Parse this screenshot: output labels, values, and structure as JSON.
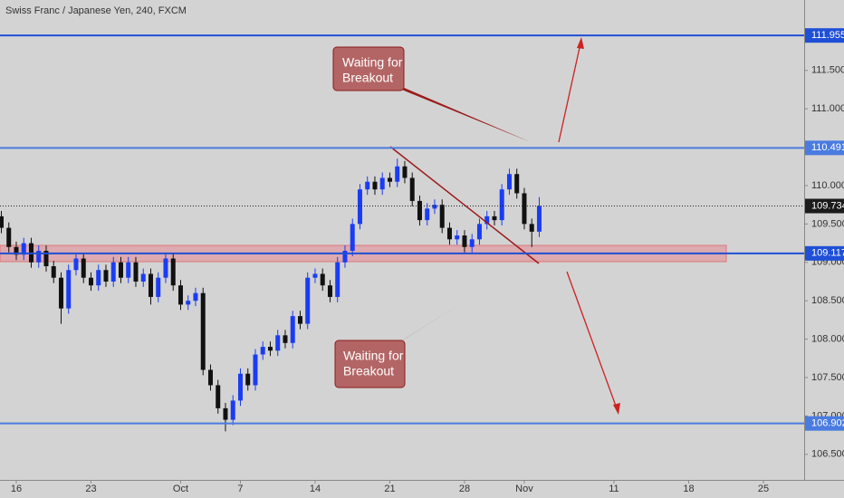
{
  "chart_data": {
    "type": "candlestick",
    "title": "Swiss Franc / Japanese Yen, 240, FXCM",
    "up_color": "#1a3cf5",
    "down_color": "#111111",
    "x": [
      -1,
      -0.5,
      0,
      0.5,
      1,
      1.5,
      2,
      2.5,
      3,
      3.5,
      4,
      4.5,
      5,
      5.5,
      6,
      6.5,
      7,
      7.5,
      8,
      8.5,
      9,
      9.5,
      10,
      10.5,
      11,
      11.5,
      12,
      12.5,
      13,
      13.5,
      14,
      14.5,
      15,
      15.5,
      16,
      16.5,
      17,
      17.5,
      18,
      18.5,
      19,
      19.5,
      20,
      20.5,
      21,
      21.5,
      22,
      22.5,
      23,
      23.5,
      24,
      24.5,
      25,
      25.5,
      26,
      26.5,
      27,
      27.5,
      28,
      28.5,
      29,
      29.5,
      30,
      30.5,
      31,
      31.5,
      32,
      32.5,
      33,
      33.5,
      34,
      34.5,
      35
    ],
    "open": [
      109.6,
      109.45,
      109.2,
      109.1,
      109.25,
      109.0,
      109.15,
      108.95,
      108.8,
      108.4,
      108.9,
      109.05,
      108.8,
      108.7,
      108.9,
      108.75,
      109.0,
      108.8,
      109.0,
      108.75,
      108.85,
      108.55,
      108.8,
      109.05,
      108.7,
      108.45,
      108.5,
      108.6,
      107.6,
      107.4,
      107.1,
      106.95,
      107.2,
      107.55,
      107.4,
      107.8,
      107.9,
      107.85,
      108.05,
      107.95,
      108.3,
      108.2,
      108.8,
      108.85,
      108.7,
      108.55,
      109.0,
      109.15,
      109.5,
      109.95,
      110.05,
      109.95,
      110.1,
      110.05,
      110.25,
      110.1,
      109.8,
      109.55,
      109.7,
      109.75,
      109.45,
      109.3,
      109.35,
      109.2,
      109.3,
      109.5,
      109.6,
      109.55,
      109.95,
      110.15,
      109.9,
      109.5,
      109.4
    ],
    "high": [
      109.67,
      109.52,
      109.27,
      109.32,
      109.32,
      109.22,
      109.22,
      109.02,
      108.87,
      108.97,
      109.12,
      109.12,
      108.87,
      108.97,
      108.97,
      109.07,
      109.07,
      109.07,
      109.07,
      108.92,
      108.92,
      108.87,
      109.12,
      109.12,
      108.77,
      108.57,
      108.67,
      108.67,
      107.67,
      107.47,
      107.17,
      107.27,
      107.62,
      107.62,
      107.87,
      107.97,
      107.97,
      108.12,
      108.12,
      108.37,
      108.37,
      108.87,
      108.92,
      108.92,
      108.77,
      109.07,
      109.22,
      109.57,
      110.02,
      110.12,
      110.12,
      110.17,
      110.17,
      110.35,
      110.32,
      110.17,
      109.87,
      109.77,
      109.82,
      109.82,
      109.52,
      109.42,
      109.42,
      109.37,
      109.57,
      109.67,
      109.67,
      110.02,
      110.22,
      110.22,
      109.97,
      109.57,
      109.85
    ],
    "low": [
      109.38,
      109.13,
      109.03,
      109.03,
      108.93,
      108.93,
      108.88,
      108.73,
      108.2,
      108.33,
      108.83,
      108.73,
      108.63,
      108.63,
      108.68,
      108.68,
      108.73,
      108.73,
      108.68,
      108.68,
      108.45,
      108.48,
      108.73,
      108.63,
      108.38,
      108.38,
      108.43,
      107.53,
      107.33,
      107.03,
      106.8,
      106.88,
      107.13,
      107.33,
      107.33,
      107.73,
      107.78,
      107.78,
      107.88,
      107.88,
      108.13,
      108.13,
      108.73,
      108.63,
      108.48,
      108.48,
      108.93,
      109.08,
      109.43,
      109.88,
      109.88,
      109.88,
      109.98,
      109.98,
      110.03,
      109.73,
      109.48,
      109.48,
      109.63,
      109.38,
      109.23,
      109.23,
      109.13,
      109.13,
      109.23,
      109.43,
      109.48,
      109.48,
      109.88,
      109.83,
      109.43,
      109.2,
      109.33
    ],
    "close": [
      109.45,
      109.2,
      109.1,
      109.25,
      109.0,
      109.15,
      108.95,
      108.8,
      108.4,
      108.9,
      109.05,
      108.8,
      108.7,
      108.9,
      108.75,
      109.0,
      108.8,
      109.0,
      108.75,
      108.85,
      108.55,
      108.8,
      109.05,
      108.7,
      108.45,
      108.5,
      108.6,
      107.6,
      107.4,
      107.1,
      106.95,
      107.2,
      107.55,
      107.4,
      107.8,
      107.9,
      107.85,
      108.05,
      107.95,
      108.3,
      108.2,
      108.8,
      108.85,
      108.7,
      108.55,
      109.0,
      109.15,
      109.5,
      109.95,
      110.05,
      109.95,
      110.1,
      110.05,
      110.25,
      110.1,
      109.8,
      109.55,
      109.7,
      109.75,
      109.45,
      109.3,
      109.35,
      109.2,
      109.3,
      109.5,
      109.6,
      109.55,
      109.95,
      110.15,
      109.9,
      109.5,
      109.4,
      109.734
    ],
    "xlim": [
      -1.09,
      52.73
    ],
    "ylim": [
      106.167,
      112.417
    ],
    "xticks": [
      {
        "value": 0,
        "label": "16"
      },
      {
        "value": 5,
        "label": "23"
      },
      {
        "value": 11,
        "label": "Oct"
      },
      {
        "value": 15,
        "label": "7"
      },
      {
        "value": 20,
        "label": "14"
      },
      {
        "value": 25,
        "label": "21"
      },
      {
        "value": 30,
        "label": "28"
      },
      {
        "value": 34,
        "label": "Nov"
      },
      {
        "value": 40,
        "label": "11"
      },
      {
        "value": 45,
        "label": "18"
      },
      {
        "value": 50,
        "label": "25"
      }
    ],
    "yticks": [
      {
        "value": 106.5,
        "label": "106.500"
      },
      {
        "value": 107,
        "label": "107.000"
      },
      {
        "value": 107.5,
        "label": "107.500"
      },
      {
        "value": 108,
        "label": "108.000"
      },
      {
        "value": 108.5,
        "label": "108.500"
      },
      {
        "value": 109,
        "label": "109.000"
      },
      {
        "value": 109.5,
        "label": "109.500"
      },
      {
        "value": 110,
        "label": "110.000"
      },
      {
        "value": 111,
        "label": "111.000"
      },
      {
        "value": 111.5,
        "label": "111.500"
      }
    ],
    "grid": false,
    "levels": [
      {
        "value": 111.955,
        "color": "#1f4fd6"
      },
      {
        "value": 110.491,
        "color": "#4a7be0"
      },
      {
        "value": 109.117,
        "color": "#1f4fd6"
      },
      {
        "value": 106.902,
        "color": "#4a7be0"
      }
    ],
    "last_price": 109.734,
    "annotations": [
      [
        "Waiting for",
        "Breakout"
      ],
      [
        "Waiting for",
        "Breakout"
      ]
    ]
  }
}
